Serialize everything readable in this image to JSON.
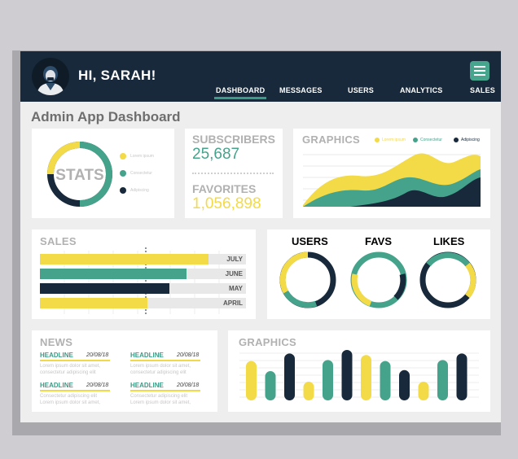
{
  "header": {
    "greeting": "HI, SARAH!",
    "nav": [
      "DASHBOARD",
      "MESSAGES",
      "USERS",
      "ANALYTICS",
      "SALES"
    ],
    "active_nav": "DASHBOARD"
  },
  "page_title": "Admin App Dashboard",
  "colors": {
    "navy": "#17293a",
    "teal": "#45a38b",
    "yellow": "#f3da47",
    "light_gray": "#e8e8e8"
  },
  "stats": {
    "title": "STATS",
    "legend": [
      "Lorem ipsum",
      "Consectetur",
      "Adipiscing"
    ]
  },
  "counters": {
    "subscribers_label": "SUBSCRIBERS",
    "subscribers_value": "25,687",
    "favorites_label": "FAVORITES",
    "favorites_value": "1,056,898"
  },
  "graphics_area": {
    "title": "GRAPHICS",
    "legend": [
      "Lorem ipsum",
      "Consectetur",
      "Adipiscing"
    ]
  },
  "sales": {
    "title": "SALES",
    "bars": [
      {
        "label": "JULY",
        "color": "#f3da47",
        "value": 0.82
      },
      {
        "label": "JUNE",
        "color": "#45a38b",
        "value": 0.71
      },
      {
        "label": "MAY",
        "color": "#17293a",
        "value": 0.63
      },
      {
        "label": "APRIL",
        "color": "#f3da47",
        "value": 0.52
      }
    ]
  },
  "rings": [
    {
      "label": "USERS",
      "label_color": "#f3da47"
    },
    {
      "label": "FAVS",
      "label_color": "#17293a"
    },
    {
      "label": "LIKES",
      "label_color": "#45a38b"
    }
  ],
  "news": {
    "title": "NEWS",
    "items": [
      {
        "headline": "HEADLINE",
        "date": "20/08/18",
        "body1": "Lorem ipsum dolor sit amet,",
        "body2": "consectetur adipiscing elit"
      },
      {
        "headline": "HEADLINE",
        "date": "20/08/18",
        "body1": "Lorem ipsum dolor sit amet,",
        "body2": "consectetur adipiscing elit"
      },
      {
        "headline": "HEADLINE",
        "date": "20/08/18",
        "body1": "Consectetur adipiscing elit",
        "body2": "Lorem ipsum dolor sit amet,"
      },
      {
        "headline": "HEADLINE",
        "date": "20/08/18",
        "body1": "Consectetur adipiscing elit",
        "body2": "Lorem ipsum dolor sit amet,"
      }
    ]
  },
  "graphics_bars": {
    "title": "GRAPHICS",
    "bar_colors": [
      "#f3da47",
      "#45a38b",
      "#17293a",
      "#f3da47",
      "#45a38b",
      "#17293a",
      "#f3da47",
      "#45a38b",
      "#17293a",
      "#f3da47",
      "#45a38b",
      "#17293a"
    ],
    "bar_values": [
      0.78,
      0.58,
      0.93,
      0.37,
      0.8,
      1.0,
      0.9,
      0.78,
      0.6,
      0.37,
      0.8,
      0.93
    ]
  }
}
